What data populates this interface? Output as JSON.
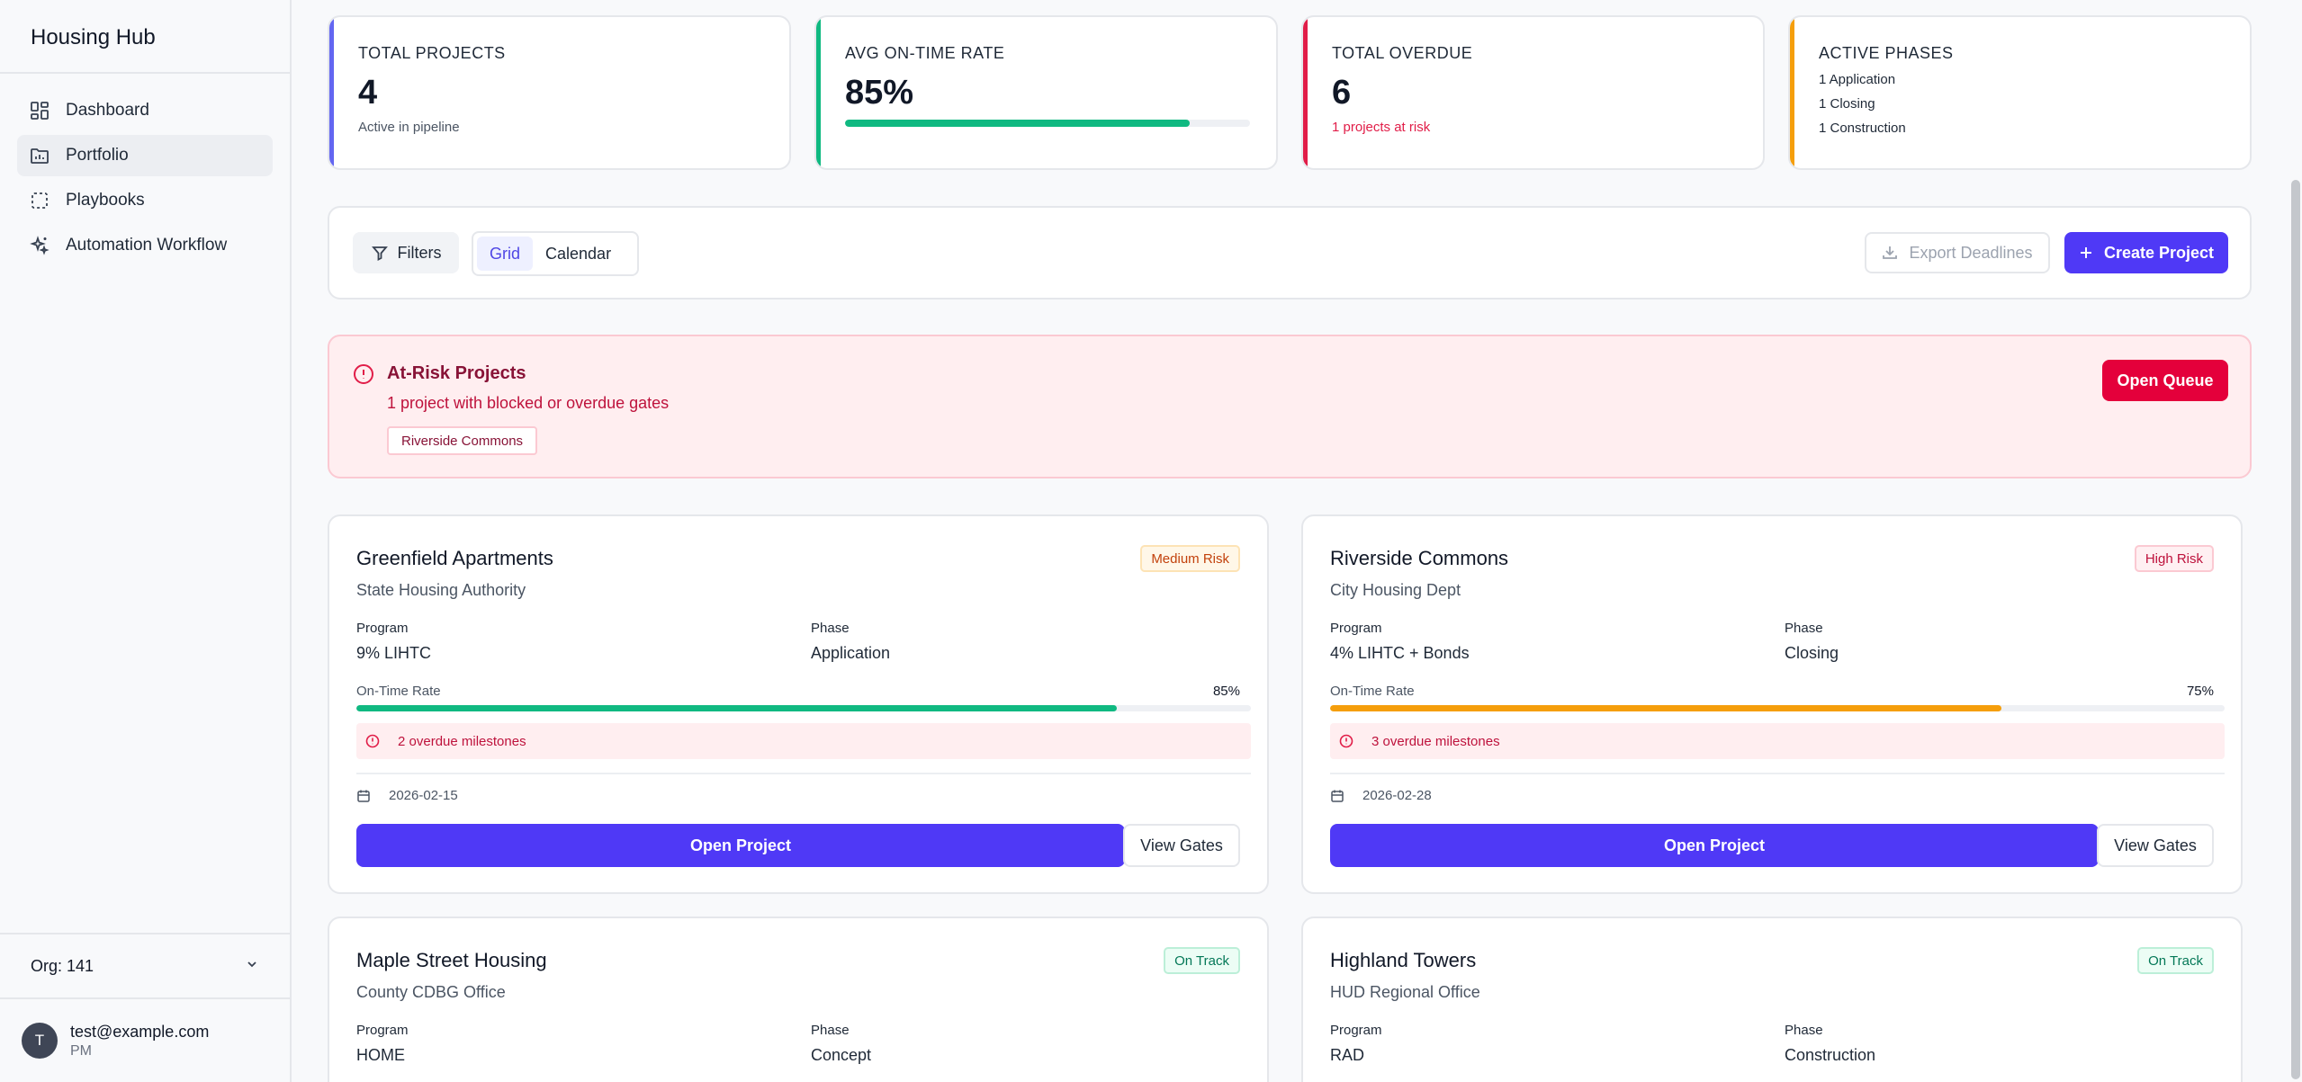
{
  "app": {
    "title": "Housing Hub"
  },
  "sidebar": {
    "items": [
      {
        "label": "Dashboard",
        "icon": "dashboard-grid-icon",
        "active": false
      },
      {
        "label": "Portfolio",
        "icon": "portfolio-folder-icon",
        "active": true
      },
      {
        "label": "Playbooks",
        "icon": "playbooks-dashed-box-icon",
        "active": false
      },
      {
        "label": "Automation Workflow",
        "icon": "sparkles-icon",
        "active": false
      }
    ],
    "org_label": "Org: 141",
    "user": {
      "initial": "T",
      "email": "test@example.com",
      "role": "PM"
    }
  },
  "stats": {
    "total_projects": {
      "label": "TOTAL PROJECTS",
      "value": "4",
      "sub": "Active in pipeline",
      "accent": "#6366f1"
    },
    "on_time": {
      "label": "AVG ON-TIME RATE",
      "value": "85%",
      "progress": 0.85,
      "accent": "#10b981"
    },
    "overdue": {
      "label": "TOTAL OVERDUE",
      "value": "6",
      "sub": "1 projects at risk",
      "accent": "#e11d48"
    },
    "phases": {
      "label": "ACTIVE PHASES",
      "lines": [
        "1 Application",
        "1 Closing",
        "1 Construction"
      ],
      "accent": "#f59e0b"
    }
  },
  "toolbar": {
    "filters_label": "Filters",
    "view_grid": "Grid",
    "view_calendar": "Calendar",
    "export_label": "Export Deadlines",
    "create_label": "Create Project"
  },
  "alert": {
    "title": "At-Risk Projects",
    "subtitle": "1 project with blocked or overdue gates",
    "chip": "Riverside Commons",
    "button": "Open Queue"
  },
  "cards": [
    {
      "name": "Greenfield Apartments",
      "agency": "State Housing Authority",
      "badge": "Medium Risk",
      "program_label": "Program",
      "program": "9% LIHTC",
      "phase_label": "Phase",
      "phase": "Application",
      "rate_label": "On-Time Rate",
      "rate": "85%",
      "rate_fraction": 0.85,
      "bar_color": "#10b981",
      "overdue": "2 overdue milestones",
      "date": "2026-02-15",
      "open_label": "Open Project",
      "gates_label": "View Gates"
    },
    {
      "name": "Riverside Commons",
      "agency": "City Housing Dept",
      "badge": "High Risk",
      "program_label": "Program",
      "program": "4% LIHTC + Bonds",
      "phase_label": "Phase",
      "phase": "Closing",
      "rate_label": "On-Time Rate",
      "rate": "75%",
      "rate_fraction": 0.75,
      "bar_color": "#f59e0b",
      "overdue": "3 overdue milestones",
      "date": "2026-02-28",
      "open_label": "Open Project",
      "gates_label": "View Gates"
    },
    {
      "name": "Maple Street Housing",
      "agency": "County CDBG Office",
      "badge": "On Track",
      "program_label": "Program",
      "program": "HOME",
      "phase_label": "Phase",
      "phase": "Concept"
    },
    {
      "name": "Highland Towers",
      "agency": "HUD Regional Office",
      "badge": "On Track",
      "program_label": "Program",
      "program": "RAD",
      "phase_label": "Phase",
      "phase": "Construction"
    }
  ]
}
